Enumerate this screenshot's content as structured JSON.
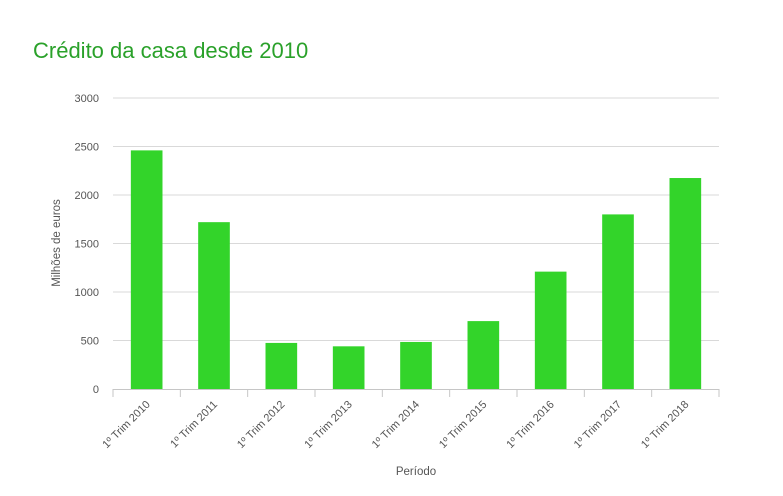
{
  "title": "Crédito da casa desde 2010",
  "chart_data": {
    "type": "bar",
    "title": "Crédito da casa desde 2010",
    "xlabel": "Período",
    "ylabel": "Milhões de euros",
    "categories": [
      "1º Trim 2010",
      "1º Trim 2011",
      "1º Trim 2012",
      "1º Trim 2013",
      "1º Trim 2014",
      "1º Trim 2015",
      "1º Trim 2016",
      "1º Trim 2017",
      "1º Trim 2018"
    ],
    "values": [
      2460,
      1720,
      475,
      440,
      485,
      700,
      1210,
      1800,
      2175
    ],
    "ylim": [
      0,
      3000
    ],
    "yticks": [
      "0",
      "500",
      "1000",
      "1500",
      "2000",
      "2500",
      "3000"
    ],
    "grid": true,
    "legend": "none",
    "colors": {
      "bar": "#33d42a",
      "title": "#2aa12a",
      "grid": "#d9d9d9",
      "axis": "#c6c6c6"
    }
  }
}
